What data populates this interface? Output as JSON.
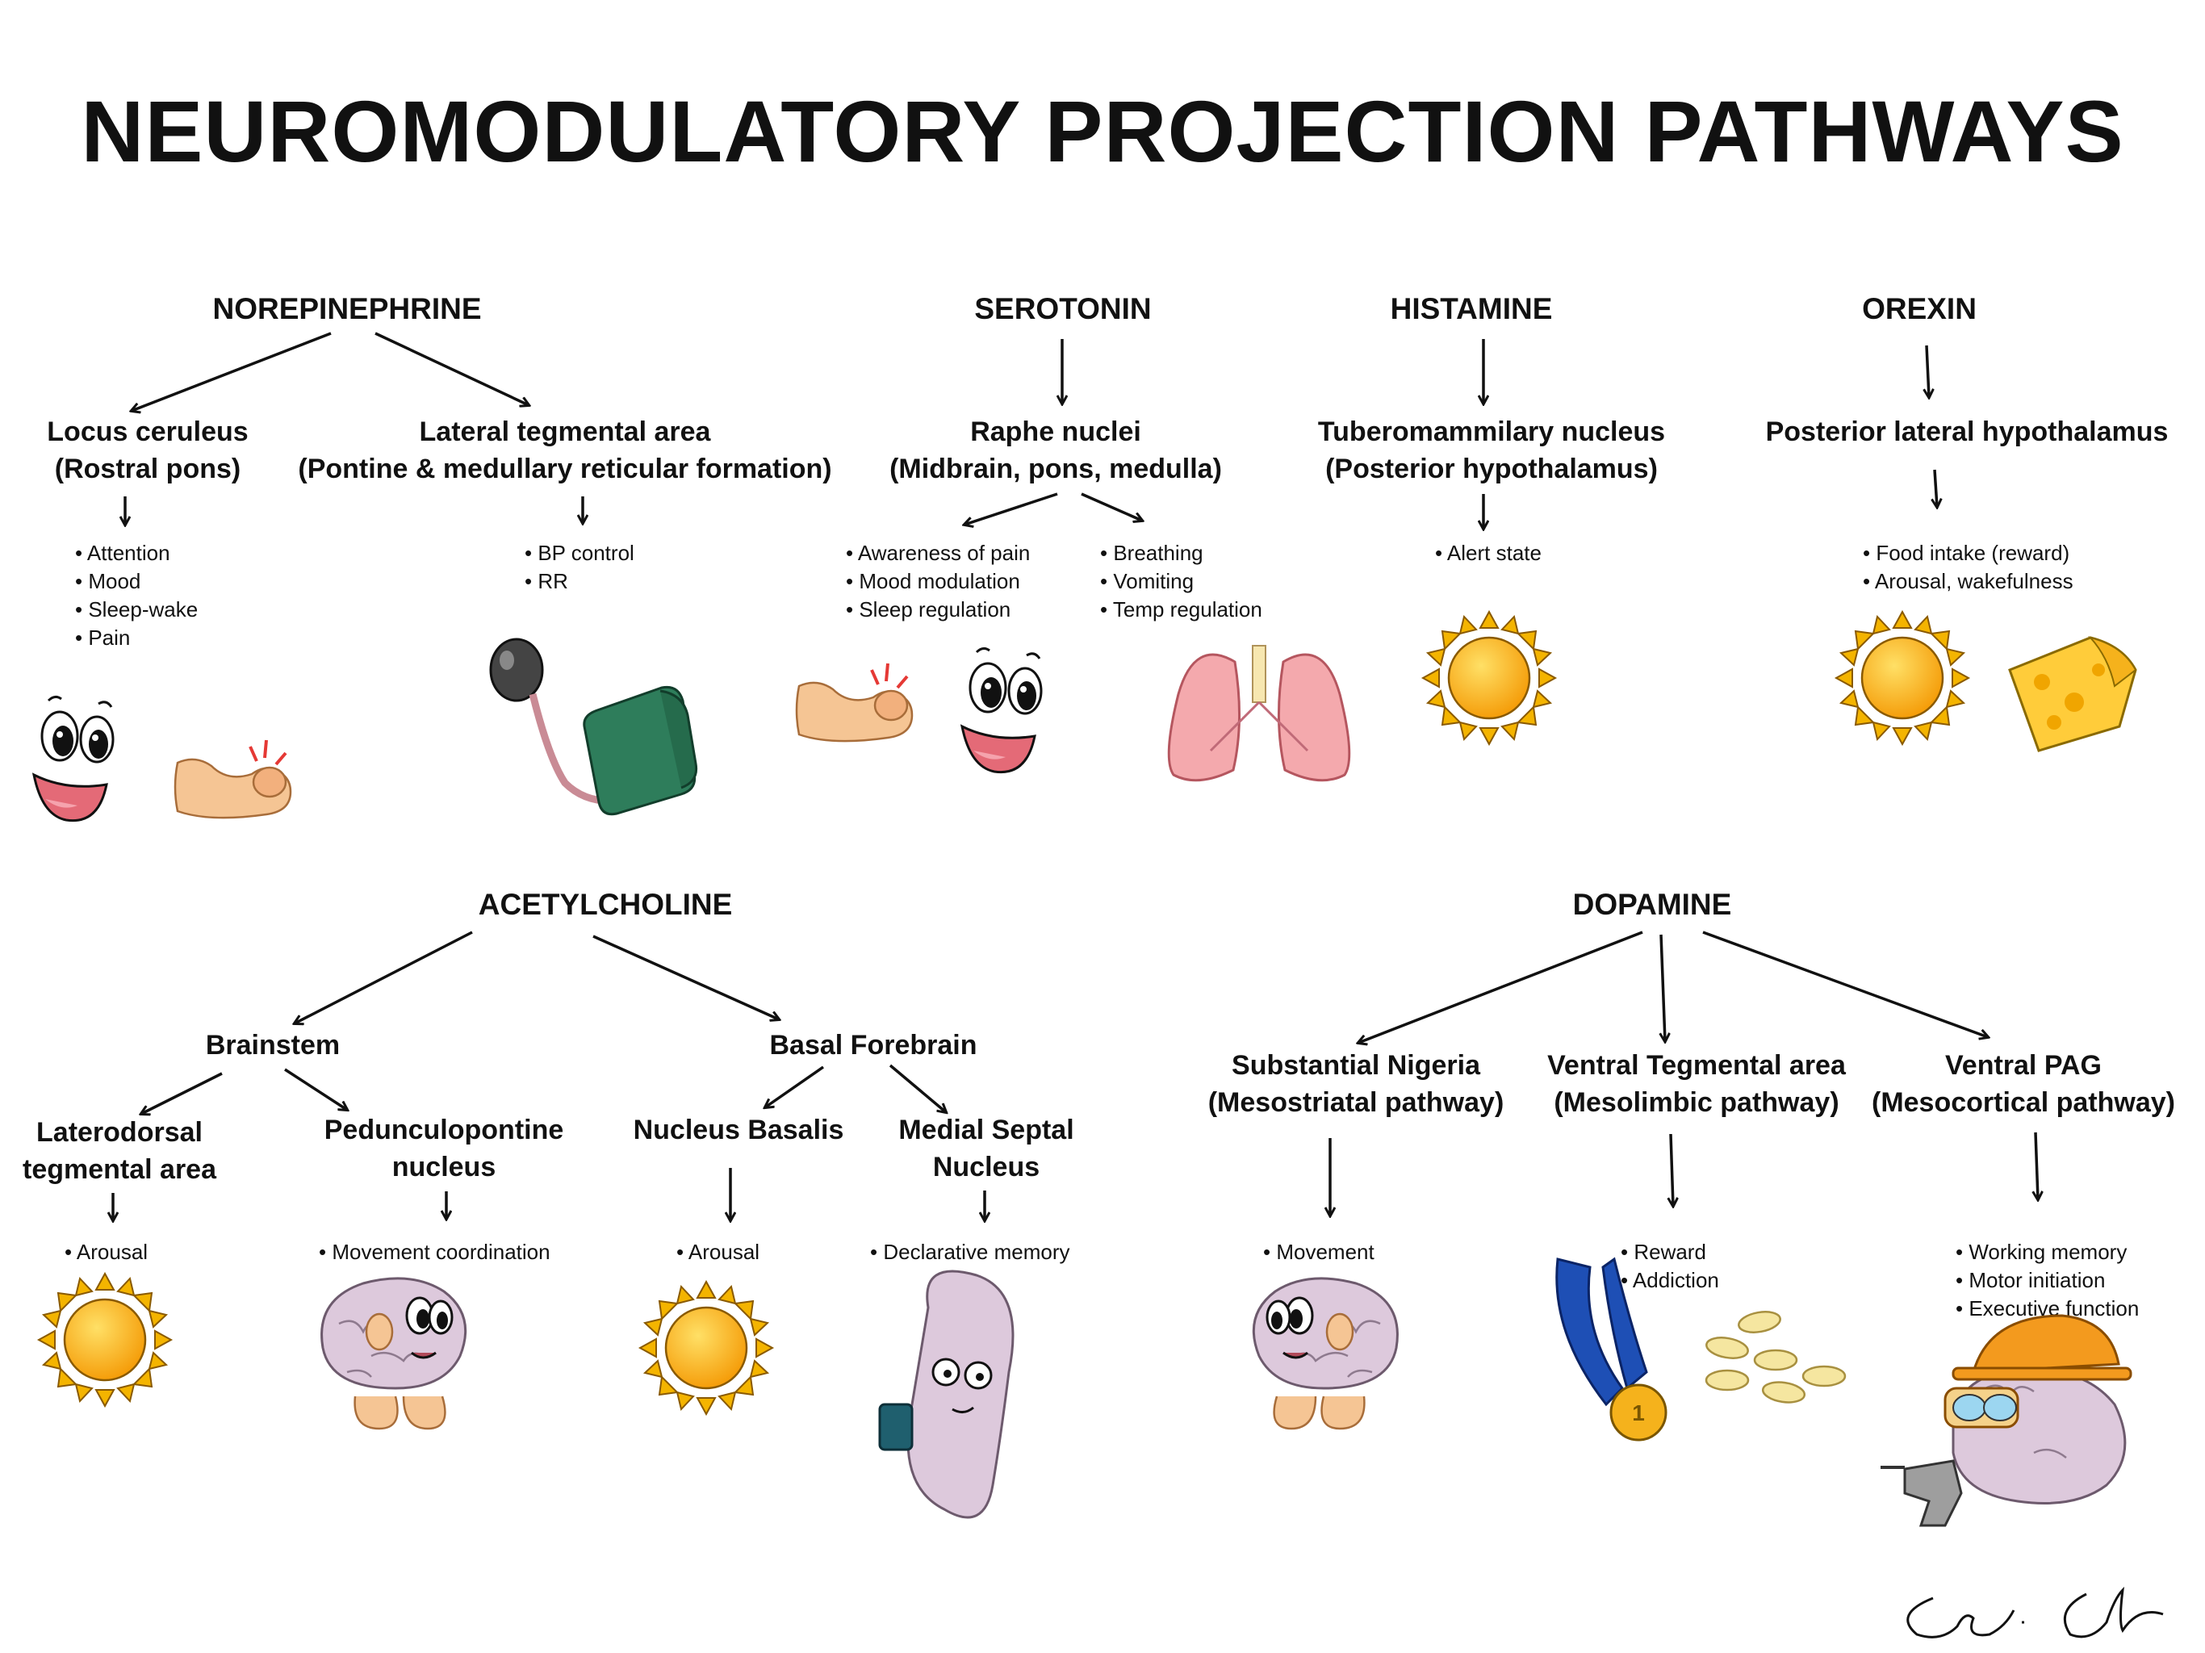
{
  "title": "NEUROMODULATORY PROJECTION PATHWAYS",
  "groups": {
    "norepinephrine": {
      "name": "NOREPINEPHRINE",
      "nuclei": [
        {
          "name": "Locus ceruleus",
          "sub": "(Rostral pons)",
          "effects": [
            "Attention",
            "Mood",
            "Sleep-wake",
            "Pain"
          ]
        },
        {
          "name": "Lateral tegmental area",
          "sub": "(Pontine & medullary reticular formation)",
          "effects": [
            "BP control",
            "RR"
          ]
        }
      ]
    },
    "serotonin": {
      "name": "SEROTONIN",
      "nucleus": {
        "name": "Raphe nuclei",
        "sub": "(Midbrain, pons, medulla)"
      },
      "effects_left": [
        "Awareness of pain",
        "Mood modulation",
        "Sleep regulation"
      ],
      "effects_right": [
        "Breathing",
        "Vomiting",
        "Temp regulation"
      ]
    },
    "histamine": {
      "name": "HISTAMINE",
      "nucleus": {
        "name": "Tuberomammilary nucleus",
        "sub": "(Posterior hypothalamus)"
      },
      "effects": [
        "Alert state"
      ]
    },
    "orexin": {
      "name": "OREXIN",
      "nucleus": {
        "name": "Posterior lateral hypothalamus"
      },
      "effects": [
        "Food intake (reward)",
        "Arousal, wakefulness"
      ]
    },
    "acetylcholine": {
      "name": "ACETYLCHOLINE",
      "brainstem": {
        "name": "Brainstem",
        "nuclei": [
          {
            "name": "Laterodorsal",
            "sub": "tegmental area",
            "effects": [
              "Arousal"
            ]
          },
          {
            "name": "Pedunculopontine",
            "sub": "nucleus",
            "effects": [
              "Movement coordination"
            ]
          }
        ]
      },
      "basal_forebrain": {
        "name": "Basal Forebrain",
        "nuclei": [
          {
            "name": "Nucleus Basalis",
            "effects": [
              "Arousal"
            ]
          },
          {
            "name": "Medial Septal",
            "sub": "Nucleus",
            "effects": [
              "Declarative memory"
            ]
          }
        ]
      }
    },
    "dopamine": {
      "name": "DOPAMINE",
      "nuclei": [
        {
          "name": "Substantial Nigeria",
          "sub": "(Mesostriatal pathway)",
          "effects": [
            "Movement"
          ]
        },
        {
          "name": "Ventral Tegmental area",
          "sub": "(Mesolimbic pathway)",
          "effects": [
            "Reward",
            "Addiction"
          ]
        },
        {
          "name": "Ventral PAG",
          "sub": "(Mesocortical pathway)",
          "effects": [
            "Working memory",
            "Motor initiation",
            "Executive function"
          ]
        }
      ]
    }
  },
  "illustrations": [
    "happy-face-icon",
    "stubbed-toe-icon",
    "bp-cuff-icon",
    "lungs-icon",
    "sun-icon",
    "cheese-icon",
    "brain-character-icon",
    "kidney-character-icon",
    "medal-icon",
    "pills-icon",
    "worker-brain-icon",
    "signature-icon"
  ],
  "colors": {
    "sun": "#f9a825",
    "sun_ray": "#f4b400",
    "skin": "#f5c594",
    "cuff": "#2e7d5b",
    "lung": "#f4a9ad",
    "cheese": "#ffcc3a",
    "brain": "#ddc9dc",
    "medal_ribbon": "#1e4fb5",
    "medal": "#f5b21c",
    "hat": "#f39a1e"
  }
}
